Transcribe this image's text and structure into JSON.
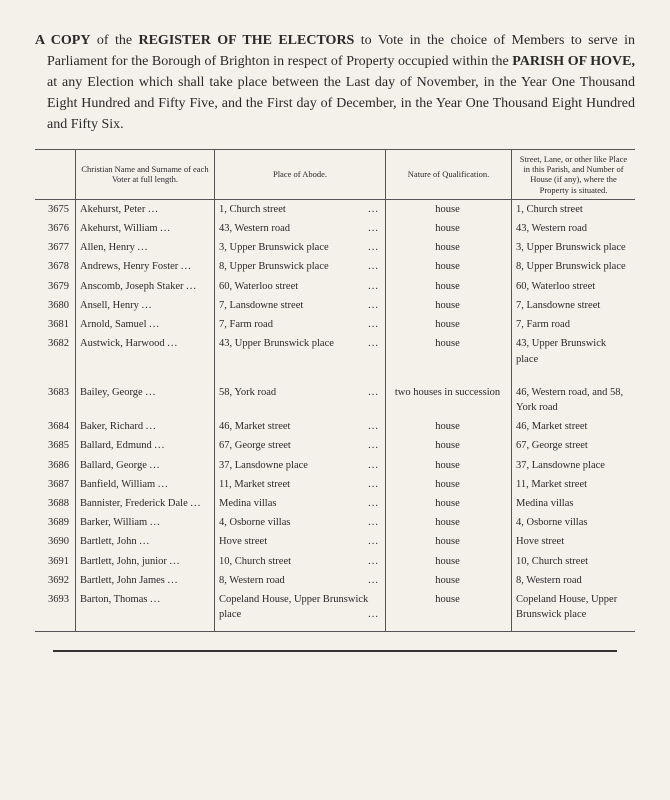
{
  "header": {
    "text": "A COPY of the REGISTER OF THE ELECTORS to Vote in the choice of Members to serve in Parliament for the Borough of Brighton in respect of Property occupied within the PARISH OF HOVE, at any Election which shall take place between the Last day of November, in the Year One Thousand Eight Hundred and Fifty Five, and the First day of December, in the Year One Thousand Eight Hundred and Fifty Six."
  },
  "columns": {
    "name": "Christian Name and Surname of each Voter at full length.",
    "abode": "Place of Abode.",
    "qual": "Nature of Qualification.",
    "loc": "Street, Lane, or other like Place in this Parish, and Number of House (if any), where the Property is situated."
  },
  "rows": [
    {
      "n": "3675",
      "name": "Akehurst, Peter",
      "abode": "1, Church street",
      "qual": "house",
      "loc": "1, Church street"
    },
    {
      "n": "3676",
      "name": "Akehurst, William",
      "abode": "43, Western road",
      "qual": "house",
      "loc": "43, Western road"
    },
    {
      "n": "3677",
      "name": "Allen, Henry",
      "abode": "3, Upper Brunswick place",
      "qual": "house",
      "loc": "3, Upper Brunswick place"
    },
    {
      "n": "3678",
      "name": "Andrews, Henry Foster",
      "abode": "8, Upper Brunswick place",
      "qual": "house",
      "loc": "8, Upper Brunswick place"
    },
    {
      "n": "3679",
      "name": "Anscomb, Joseph Staker",
      "abode": "60, Waterloo street",
      "qual": "house",
      "loc": "60, Waterloo street"
    },
    {
      "n": "3680",
      "name": "Ansell, Henry",
      "abode": "7, Lansdowne street",
      "qual": "house",
      "loc": "7, Lansdowne street"
    },
    {
      "n": "3681",
      "name": "Arnold, Samuel",
      "abode": "7, Farm road",
      "qual": "house",
      "loc": "7, Farm road"
    },
    {
      "n": "3682",
      "name": "Austwick, Harwood",
      "abode": "43, Upper Brunswick place",
      "qual": "house",
      "loc": "43, Upper Brunswick place"
    }
  ],
  "rows2": [
    {
      "n": "3683",
      "name": "Bailey, George",
      "abode": "58, York road",
      "qual": "two houses in succession",
      "loc": "46, Western road, and 58, York road"
    },
    {
      "n": "3684",
      "name": "Baker, Richard",
      "abode": "46, Market street",
      "qual": "house",
      "loc": "46, Market street"
    },
    {
      "n": "3685",
      "name": "Ballard, Edmund",
      "abode": "67, George street",
      "qual": "house",
      "loc": "67, George street"
    },
    {
      "n": "3686",
      "name": "Ballard, George",
      "abode": "37, Lansdowne place",
      "qual": "house",
      "loc": "37, Lansdowne place"
    },
    {
      "n": "3687",
      "name": "Banfield, William",
      "abode": "11, Market street",
      "qual": "house",
      "loc": "11, Market street"
    },
    {
      "n": "3688",
      "name": "Bannister, Frederick Dale",
      "abode": "Medina villas",
      "qual": "house",
      "loc": "Medina villas"
    },
    {
      "n": "3689",
      "name": "Barker, William",
      "abode": "4, Osborne villas",
      "qual": "house",
      "loc": "4, Osborne villas"
    },
    {
      "n": "3690",
      "name": "Bartlett, John",
      "abode": "Hove street",
      "qual": "house",
      "loc": "Hove street"
    },
    {
      "n": "3691",
      "name": "Bartlett, John, junior",
      "abode": "10, Church street",
      "qual": "house",
      "loc": "10, Church street"
    },
    {
      "n": "3692",
      "name": "Bartlett, John James",
      "abode": "8, Western road",
      "qual": "house",
      "loc": "8, Western road"
    },
    {
      "n": "3693",
      "name": "Barton, Thomas",
      "abode": "Copeland House, Upper Brunswick place",
      "qual": "house",
      "loc": "Copeland House, Upper Brunswick place"
    }
  ]
}
